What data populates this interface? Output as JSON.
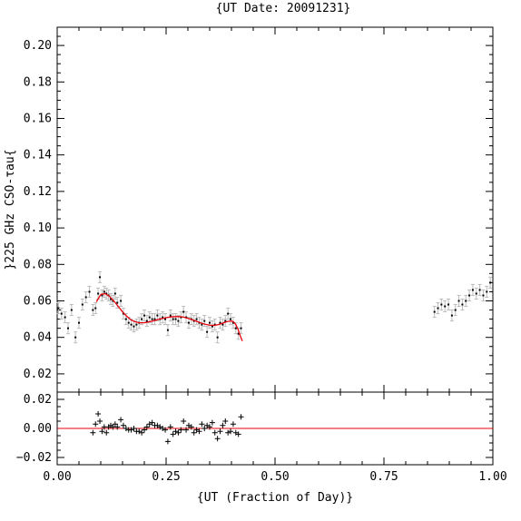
{
  "chart_data": {
    "type": "scatter",
    "title": "{UT Date: 20091231}",
    "xlabel": "{UT (Fraction of Day)}",
    "ylabel": "}225 GHz CSO-τau{",
    "xlim": [
      0,
      1
    ],
    "x_ticks": [
      0.0,
      0.25,
      0.5,
      0.75,
      1.0
    ],
    "x_tick_labels": [
      "0.00",
      "0.25",
      "0.50",
      "0.75",
      "1.00"
    ],
    "top_panel": {
      "ylim": [
        0.01,
        0.21
      ],
      "y_ticks": [
        0.02,
        0.04,
        0.06,
        0.08,
        0.1,
        0.12,
        0.14,
        0.16,
        0.18,
        0.2
      ],
      "y_tick_labels": [
        "0.02",
        "0.04",
        "0.06",
        "0.08",
        "0.10",
        "0.12",
        "0.14",
        "0.16",
        "0.18",
        "0.20"
      ],
      "grid": false,
      "series": [
        {
          "kind": "points",
          "color": "#000000",
          "error_bar_color": "#bbbbbb",
          "x": [
            0.003,
            0.01,
            0.018,
            0.025,
            0.033,
            0.042,
            0.05,
            0.058,
            0.066,
            0.074,
            0.082,
            0.088,
            0.094,
            0.098,
            0.103,
            0.108,
            0.113,
            0.118,
            0.123,
            0.128,
            0.133,
            0.138,
            0.146,
            0.152,
            0.158,
            0.164,
            0.17,
            0.176,
            0.182,
            0.188,
            0.194,
            0.2,
            0.206,
            0.212,
            0.218,
            0.224,
            0.23,
            0.236,
            0.242,
            0.248,
            0.254,
            0.26,
            0.266,
            0.272,
            0.278,
            0.284,
            0.29,
            0.296,
            0.302,
            0.308,
            0.314,
            0.32,
            0.326,
            0.332,
            0.338,
            0.344,
            0.35,
            0.356,
            0.362,
            0.368,
            0.374,
            0.38,
            0.386,
            0.392,
            0.398,
            0.404,
            0.41,
            0.416,
            0.422,
            0.866,
            0.874,
            0.882,
            0.89,
            0.898,
            0.906,
            0.914,
            0.922,
            0.93,
            0.938,
            0.946,
            0.954,
            0.962,
            0.97,
            0.978,
            0.986,
            0.994
          ],
          "y": [
            0.056,
            0.053,
            0.051,
            0.045,
            0.055,
            0.04,
            0.048,
            0.058,
            0.062,
            0.065,
            0.055,
            0.056,
            0.064,
            0.073,
            0.063,
            0.065,
            0.064,
            0.063,
            0.061,
            0.06,
            0.064,
            0.059,
            0.06,
            0.053,
            0.05,
            0.048,
            0.047,
            0.046,
            0.047,
            0.048,
            0.05,
            0.052,
            0.049,
            0.051,
            0.05,
            0.05,
            0.052,
            0.05,
            0.051,
            0.05,
            0.044,
            0.052,
            0.05,
            0.05,
            0.049,
            0.051,
            0.054,
            0.051,
            0.048,
            0.05,
            0.049,
            0.05,
            0.048,
            0.047,
            0.049,
            0.043,
            0.048,
            0.046,
            0.047,
            0.04,
            0.048,
            0.047,
            0.049,
            0.053,
            0.05,
            0.048,
            0.045,
            0.042,
            0.045,
            0.054,
            0.056,
            0.058,
            0.057,
            0.058,
            0.052,
            0.055,
            0.06,
            0.058,
            0.06,
            0.063,
            0.066,
            0.064,
            0.066,
            0.063,
            0.065,
            0.07
          ],
          "yerr": 0.003
        },
        {
          "kind": "fit-curve",
          "color": "#e8000b",
          "x": [
            0.09,
            0.1,
            0.11,
            0.12,
            0.13,
            0.14,
            0.15,
            0.16,
            0.17,
            0.18,
            0.19,
            0.2,
            0.21,
            0.22,
            0.23,
            0.24,
            0.25,
            0.26,
            0.27,
            0.28,
            0.29,
            0.3,
            0.31,
            0.32,
            0.33,
            0.34,
            0.35,
            0.36,
            0.37,
            0.38,
            0.39,
            0.4,
            0.405,
            0.41,
            0.415,
            0.42,
            0.425
          ],
          "y": [
            0.0595,
            0.0635,
            0.064,
            0.0625,
            0.06,
            0.057,
            0.054,
            0.0515,
            0.0495,
            0.0485,
            0.048,
            0.048,
            0.0485,
            0.049,
            0.0497,
            0.0503,
            0.0508,
            0.0512,
            0.0514,
            0.0514,
            0.0511,
            0.0505,
            0.0497,
            0.0488,
            0.0479,
            0.0472,
            0.0467,
            0.0466,
            0.047,
            0.0478,
            0.0487,
            0.049,
            0.0485,
            0.047,
            0.0445,
            0.041,
            0.038
          ]
        }
      ]
    },
    "bottom_panel": {
      "ylim": [
        -0.025,
        0.025
      ],
      "y_ticks": [
        -0.02,
        0.0,
        0.02
      ],
      "y_tick_labels": [
        "−0.02",
        "0.00",
        "0.02"
      ],
      "zero_line_color": "#e8000b",
      "series": [
        {
          "kind": "residuals",
          "color": "#000000",
          "x": [
            0.082,
            0.088,
            0.094,
            0.098,
            0.103,
            0.108,
            0.113,
            0.118,
            0.123,
            0.128,
            0.133,
            0.138,
            0.146,
            0.152,
            0.158,
            0.164,
            0.17,
            0.176,
            0.182,
            0.188,
            0.194,
            0.2,
            0.206,
            0.212,
            0.218,
            0.224,
            0.23,
            0.236,
            0.242,
            0.248,
            0.254,
            0.26,
            0.266,
            0.272,
            0.278,
            0.284,
            0.29,
            0.296,
            0.302,
            0.308,
            0.314,
            0.32,
            0.326,
            0.332,
            0.338,
            0.344,
            0.35,
            0.356,
            0.362,
            0.368,
            0.374,
            0.38,
            0.386,
            0.392,
            0.398,
            0.404,
            0.41,
            0.416,
            0.422
          ],
          "y": [
            -0.003,
            0.003,
            0.01,
            0.005,
            -0.002,
            0.001,
            -0.003,
            0.001,
            0.002,
            0.001,
            0.003,
            0.001,
            0.006,
            0.002,
            0.0,
            -0.001,
            -0.001,
            0.0,
            -0.002,
            -0.002,
            -0.003,
            -0.001,
            0.001,
            0.003,
            0.004,
            0.002,
            0.002,
            0.001,
            0.0,
            -0.001,
            -0.009,
            0.001,
            -0.004,
            -0.002,
            -0.003,
            -0.001,
            0.005,
            -0.001,
            0.002,
            0.001,
            -0.003,
            -0.001,
            -0.002,
            0.003,
            0.0,
            0.002,
            0.001,
            0.004,
            -0.003,
            -0.007,
            -0.002,
            0.002,
            0.005,
            -0.003,
            -0.002,
            0.003,
            -0.003,
            -0.004,
            0.008
          ]
        }
      ]
    }
  }
}
